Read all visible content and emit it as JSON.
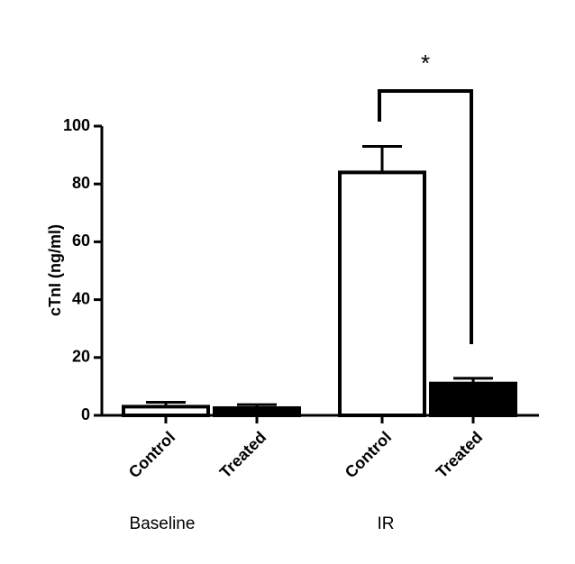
{
  "chart_data": {
    "type": "bar",
    "y_label": "cTnI (ng/ml)",
    "categories": [
      "Control",
      "Treated",
      "Control",
      "Treated"
    ],
    "groups": [
      "Baseline",
      "IR"
    ],
    "values": [
      3,
      2.5,
      84,
      11
    ],
    "errors": [
      1.5,
      1.2,
      9,
      1.8
    ],
    "colors": [
      "#ffffff",
      "#000000",
      "#ffffff",
      "#000000"
    ],
    "ylim": [
      0,
      100
    ],
    "yticks": [
      0,
      20,
      40,
      60,
      80,
      100
    ],
    "annotations": [
      {
        "text": "*"
      }
    ]
  }
}
